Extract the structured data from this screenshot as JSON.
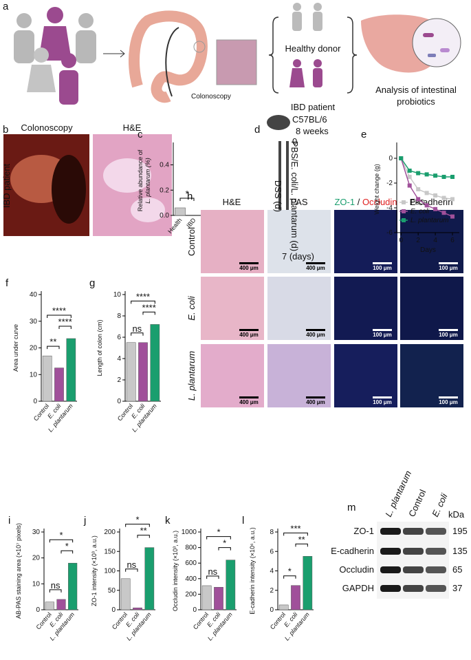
{
  "figure": {
    "a": {
      "label": "a",
      "colonoscopy": "Colonoscopy",
      "healthy": "Healthy donor",
      "ibd": "IBD patient",
      "analysis": [
        "Analysis of intestinal",
        "probiotics"
      ]
    },
    "b": {
      "label": "b",
      "colonoscopy": "Colonoscopy",
      "he": "H&E",
      "row": "IBD patient"
    },
    "d": {
      "label": "d",
      "strain": "C57BL/6",
      "age": "8 weeks",
      "start": "0",
      "dss": "DSS (d)",
      "treat": "PBS/E. coli/L. plantarum (d)",
      "end": "7 (days)"
    },
    "h": {
      "label": "h",
      "cols": [
        "H&E",
        "PAS"
      ],
      "zo1": "ZO-1",
      "slash": " / ",
      "occludin": "Occludin",
      "ecad": "E-cadherin",
      "rows": [
        "Control",
        "E. coli",
        "L. plantarum"
      ],
      "scale_he": "400 μm",
      "scale_if": "100 μm"
    },
    "m": {
      "label": "m",
      "cols": [
        "L. plantarum",
        "Control",
        "E. coli"
      ],
      "unit": "kDa",
      "rows": [
        "ZO-1",
        "E-cadherin",
        "Occludin",
        "GAPDH"
      ],
      "kda": [
        "195",
        "135",
        "65",
        "37"
      ]
    }
  },
  "chart_data": [
    {
      "type": "bar",
      "panel": "c",
      "ylabel": [
        "Relative abundance of",
        "L. plantarum (%)"
      ],
      "categories": [
        "Health",
        "IBD"
      ],
      "values": [
        0.06,
        0.0
      ],
      "colors": [
        "#c8c8c8",
        "#a0509a"
      ],
      "ylim": [
        0,
        0.55
      ],
      "yticks": [
        {
          "value": 0,
          "label": "0.0"
        },
        {
          "value": 0.2,
          "label": "0.2"
        },
        {
          "value": 0.4,
          "label": "0.4"
        }
      ],
      "annotations": [
        "*"
      ]
    },
    {
      "type": "line",
      "panel": "e",
      "ylabel": "Weight change (g)",
      "xlabel": "Days",
      "x": [
        0,
        1,
        2,
        3,
        4,
        5,
        6
      ],
      "xlim": [
        -0.5,
        6.8
      ],
      "xticks": [
        0,
        2,
        4,
        6
      ],
      "ylim": [
        -6,
        1
      ],
      "yticks": [
        -6,
        -4,
        -2,
        0
      ],
      "legend": "lower left",
      "series": [
        {
          "name": "PBS",
          "color": "#c8c8c8",
          "values": [
            0,
            -1.5,
            -2.5,
            -2.8,
            -3.0,
            -3.2,
            -3.3
          ]
        },
        {
          "name": "E. coli",
          "color": "#a0509a",
          "values": [
            0,
            -2.2,
            -3.3,
            -3.8,
            -4.1,
            -4.4,
            -4.7
          ]
        },
        {
          "name": "L. plantarum",
          "color": "#1a9e6e",
          "values": [
            0,
            -1.0,
            -1.2,
            -1.3,
            -1.4,
            -1.5,
            -1.5
          ]
        }
      ]
    },
    {
      "type": "bar",
      "panel": "f",
      "ylabel": [
        "Area under curve"
      ],
      "categories": [
        "Control",
        "E. coli",
        "L. plantarum"
      ],
      "values": [
        17,
        12.5,
        23.5
      ],
      "colors": [
        "#c8c8c8",
        "#a0509a",
        "#1a9e6e"
      ],
      "ylim": [
        0,
        40
      ],
      "yticks": [
        0,
        10,
        20,
        30,
        40
      ],
      "annotations": [
        "**",
        "****",
        "****"
      ]
    },
    {
      "type": "bar",
      "panel": "g",
      "ylabel": [
        "Length of colon (cm)"
      ],
      "categories": [
        "Control",
        "E. coli",
        "L. plantarum"
      ],
      "values": [
        5.5,
        5.5,
        7.2
      ],
      "colors": [
        "#c8c8c8",
        "#a0509a",
        "#1a9e6e"
      ],
      "ylim": [
        0,
        10
      ],
      "yticks": [
        0,
        2,
        4,
        6,
        8,
        10
      ],
      "annotations": [
        "ns",
        "****",
        "****"
      ]
    },
    {
      "type": "bar",
      "panel": "i",
      "ylabel": [
        "AB-PAS staining area (×10⁷ pixels)"
      ],
      "categories": [
        "Control",
        "E. coli",
        "L. plantarum"
      ],
      "values": [
        3,
        4,
        18
      ],
      "colors": [
        "#c8c8c8",
        "#a0509a",
        "#1a9e6e"
      ],
      "ylim": [
        0,
        30
      ],
      "yticks": [
        0,
        10,
        20,
        30
      ],
      "annotations": [
        "ns",
        "*",
        "*"
      ]
    },
    {
      "type": "bar",
      "panel": "j",
      "ylabel": [
        "ZO-1 intensity (×10³, a.u.)"
      ],
      "categories": [
        "Control",
        "E. coli",
        "L. plantarum"
      ],
      "values": [
        80,
        5,
        160
      ],
      "colors": [
        "#c8c8c8",
        "#a0509a",
        "#1a9e6e"
      ],
      "ylim": [
        0,
        200
      ],
      "yticks": [
        0,
        50,
        100,
        150,
        200
      ],
      "annotations": [
        "ns",
        "**",
        "*"
      ]
    },
    {
      "type": "bar",
      "panel": "k",
      "ylabel": [
        "Occludin intensity (×10³, a.u.)"
      ],
      "categories": [
        "Control",
        "E. coli",
        "L. plantarum"
      ],
      "values": [
        310,
        290,
        640
      ],
      "colors": [
        "#c8c8c8",
        "#a0509a",
        "#1a9e6e"
      ],
      "ylim": [
        0,
        1000
      ],
      "yticks": [
        0,
        200,
        400,
        600,
        800,
        1000
      ],
      "annotations": [
        "ns",
        "*",
        "*"
      ]
    },
    {
      "type": "bar",
      "panel": "l",
      "ylabel": [
        "E-cadherin intensity (×10⁶, a.u.)"
      ],
      "categories": [
        "Control",
        "E. coli",
        "L. plantarum"
      ],
      "values": [
        0.5,
        2.5,
        5.5
      ],
      "colors": [
        "#c8c8c8",
        "#a0509a",
        "#1a9e6e"
      ],
      "ylim": [
        0,
        8
      ],
      "yticks": [
        0,
        2,
        4,
        6,
        8
      ],
      "annotations": [
        "*",
        "**",
        "***"
      ]
    }
  ]
}
